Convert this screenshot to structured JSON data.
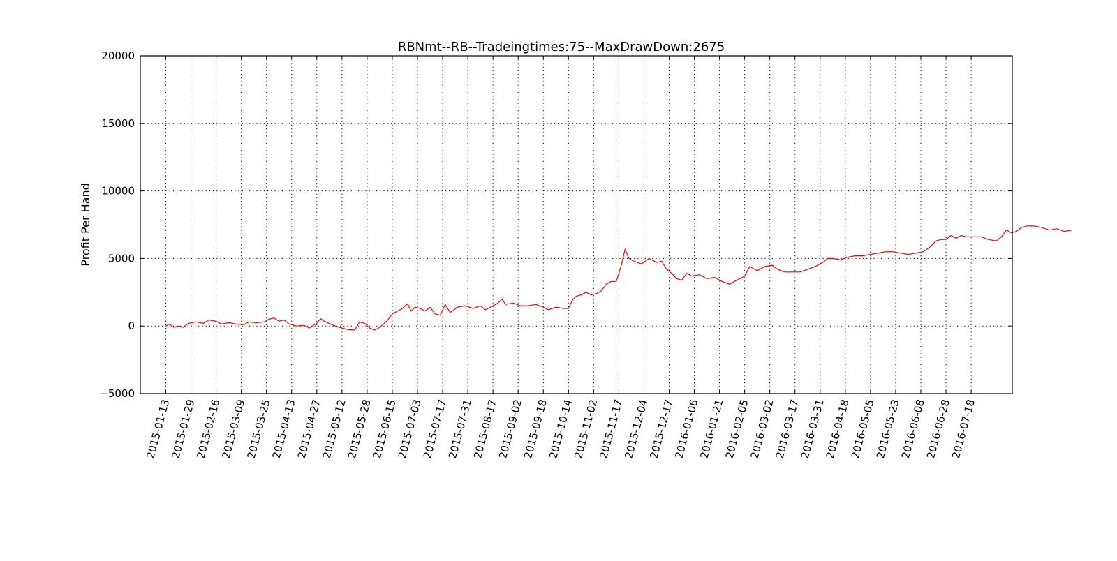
{
  "chart_data": {
    "type": "line",
    "title": "RBNmt--RB--Tradeingtimes:75--MaxDrawDown:2675",
    "xlabel": "",
    "ylabel": "Profit Per Hand",
    "ylim": [
      -5000,
      20000
    ],
    "yticks": [
      -5000,
      0,
      5000,
      10000,
      15000,
      20000
    ],
    "ytick_labels": [
      "−5000",
      "0",
      "5000",
      "10000",
      "15000",
      "20000"
    ],
    "xtick_labels": [
      "2015-01-13",
      "2015-01-29",
      "2015-02-16",
      "2015-03-09",
      "2015-03-25",
      "2015-04-13",
      "2015-04-27",
      "2015-05-12",
      "2015-05-28",
      "2015-06-15",
      "2015-07-03",
      "2015-07-17",
      "2015-07-31",
      "2015-08-17",
      "2015-09-02",
      "2015-09-18",
      "2015-10-14",
      "2015-11-02",
      "2015-11-17",
      "2015-12-04",
      "2015-12-17",
      "2016-01-06",
      "2016-01-21",
      "2016-02-05",
      "2016-03-02",
      "2016-03-17",
      "2016-03-31",
      "2016-04-18",
      "2016-05-05",
      "2016-05-23",
      "2016-06-08",
      "2016-06-28",
      "2016-07-18"
    ],
    "x_index_range": [
      0,
      36
    ],
    "grid": true,
    "color": "#ff0000",
    "series": [
      {
        "values": [
          [
            0.0,
            0
          ],
          [
            0.15,
            150
          ],
          [
            0.3,
            -100
          ],
          [
            0.5,
            0
          ],
          [
            0.7,
            -100
          ],
          [
            0.9,
            200
          ],
          [
            1.2,
            300
          ],
          [
            1.5,
            200
          ],
          [
            1.7,
            450
          ],
          [
            2.0,
            350
          ],
          [
            2.2,
            150
          ],
          [
            2.5,
            250
          ],
          [
            2.8,
            150
          ],
          [
            3.1,
            100
          ],
          [
            3.3,
            300
          ],
          [
            3.6,
            250
          ],
          [
            3.9,
            300
          ],
          [
            4.1,
            500
          ],
          [
            4.3,
            600
          ],
          [
            4.5,
            350
          ],
          [
            4.7,
            450
          ],
          [
            4.9,
            150
          ],
          [
            5.2,
            0
          ],
          [
            5.5,
            50
          ],
          [
            5.7,
            -150
          ],
          [
            6.0,
            200
          ],
          [
            6.15,
            550
          ],
          [
            6.3,
            350
          ],
          [
            6.6,
            100
          ],
          [
            6.9,
            -100
          ],
          [
            7.2,
            -250
          ],
          [
            7.5,
            -300
          ],
          [
            7.7,
            300
          ],
          [
            7.9,
            200
          ],
          [
            8.1,
            -150
          ],
          [
            8.3,
            -300
          ],
          [
            8.5,
            -100
          ],
          [
            8.8,
            400
          ],
          [
            9.0,
            900
          ],
          [
            9.2,
            1100
          ],
          [
            9.4,
            1300
          ],
          [
            9.6,
            1650
          ],
          [
            9.75,
            1100
          ],
          [
            9.9,
            1400
          ],
          [
            10.1,
            1300
          ],
          [
            10.3,
            1100
          ],
          [
            10.5,
            1400
          ],
          [
            10.7,
            900
          ],
          [
            10.9,
            800
          ],
          [
            11.1,
            1600
          ],
          [
            11.3,
            1000
          ],
          [
            11.6,
            1400
          ],
          [
            11.9,
            1500
          ],
          [
            12.2,
            1300
          ],
          [
            12.5,
            1500
          ],
          [
            12.7,
            1200
          ],
          [
            13.0,
            1500
          ],
          [
            13.2,
            1700
          ],
          [
            13.35,
            2000
          ],
          [
            13.5,
            1600
          ],
          [
            13.8,
            1700
          ],
          [
            14.1,
            1500
          ],
          [
            14.4,
            1500
          ],
          [
            14.7,
            1600
          ],
          [
            15.0,
            1400
          ],
          [
            15.2,
            1200
          ],
          [
            15.5,
            1400
          ],
          [
            15.8,
            1300
          ],
          [
            16.0,
            1300
          ],
          [
            16.15,
            1900
          ],
          [
            16.3,
            2200
          ],
          [
            16.5,
            2300
          ],
          [
            16.7,
            2500
          ],
          [
            16.9,
            2300
          ],
          [
            17.1,
            2400
          ],
          [
            17.3,
            2600
          ],
          [
            17.5,
            3100
          ],
          [
            17.7,
            3300
          ],
          [
            17.9,
            3300
          ],
          [
            18.1,
            4500
          ],
          [
            18.25,
            5700
          ],
          [
            18.4,
            5000
          ],
          [
            18.6,
            4800
          ],
          [
            18.9,
            4600
          ],
          [
            19.2,
            5000
          ],
          [
            19.5,
            4700
          ],
          [
            19.7,
            4800
          ],
          [
            19.9,
            4200
          ],
          [
            20.1,
            3900
          ],
          [
            20.3,
            3500
          ],
          [
            20.5,
            3400
          ],
          [
            20.7,
            3900
          ],
          [
            20.9,
            3700
          ],
          [
            21.2,
            3800
          ],
          [
            21.5,
            3500
          ],
          [
            21.8,
            3600
          ],
          [
            22.1,
            3300
          ],
          [
            22.4,
            3100
          ],
          [
            22.7,
            3400
          ],
          [
            23.0,
            3700
          ],
          [
            23.2,
            4400
          ],
          [
            23.5,
            4100
          ],
          [
            23.8,
            4400
          ],
          [
            24.1,
            4500
          ],
          [
            24.3,
            4200
          ],
          [
            24.6,
            4000
          ],
          [
            24.9,
            4000
          ],
          [
            25.2,
            4000
          ],
          [
            25.5,
            4200
          ],
          [
            25.8,
            4400
          ],
          [
            26.1,
            4700
          ],
          [
            26.3,
            5000
          ],
          [
            26.5,
            5000
          ],
          [
            26.8,
            4900
          ],
          [
            27.1,
            5100
          ],
          [
            27.4,
            5200
          ],
          [
            27.7,
            5200
          ],
          [
            28.0,
            5300
          ],
          [
            28.3,
            5400
          ],
          [
            28.6,
            5500
          ],
          [
            28.9,
            5500
          ],
          [
            29.2,
            5400
          ],
          [
            29.5,
            5300
          ],
          [
            29.8,
            5400
          ],
          [
            30.1,
            5500
          ],
          [
            30.4,
            5900
          ],
          [
            30.6,
            6300
          ],
          [
            30.8,
            6400
          ],
          [
            31.0,
            6400
          ],
          [
            31.2,
            6700
          ],
          [
            31.4,
            6500
          ],
          [
            31.6,
            6700
          ],
          [
            31.8,
            6600
          ],
          [
            32.1,
            6600
          ],
          [
            32.4,
            6600
          ],
          [
            32.7,
            6400
          ],
          [
            33.0,
            6300
          ],
          [
            33.2,
            6600
          ],
          [
            33.4,
            7100
          ],
          [
            33.6,
            6900
          ],
          [
            33.8,
            7000
          ],
          [
            34.0,
            7300
          ],
          [
            34.2,
            7400
          ],
          [
            34.5,
            7400
          ],
          [
            34.8,
            7300
          ],
          [
            35.1,
            7100
          ],
          [
            35.4,
            7200
          ],
          [
            35.7,
            7000
          ],
          [
            36.0,
            7100
          ]
        ]
      }
    ]
  }
}
